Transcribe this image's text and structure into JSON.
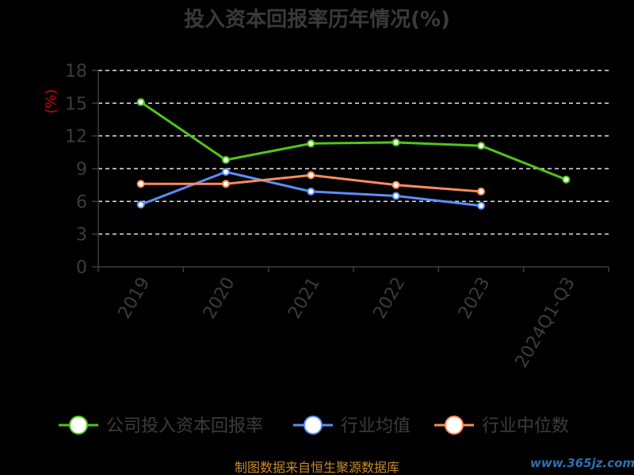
{
  "chart_data": {
    "type": "line",
    "title": "投入资本回报率历年情况(%)",
    "ylabel": "(%)",
    "xlabel": "",
    "categories": [
      "2019",
      "2020",
      "2021",
      "2022",
      "2023",
      "2024Q1-Q3"
    ],
    "ylim": [
      0,
      18
    ],
    "yticks": [
      0,
      3,
      6,
      9,
      12,
      15,
      18
    ],
    "grid": true,
    "legend_position": "bottom",
    "series": [
      {
        "name": "公司投入资本回报率",
        "color": "#52c41a",
        "values": [
          15.1,
          9.8,
          11.3,
          11.4,
          11.1,
          8.0
        ]
      },
      {
        "name": "行业均值",
        "color": "#5b8ff9",
        "values": [
          5.7,
          8.7,
          6.9,
          6.5,
          5.6,
          null
        ]
      },
      {
        "name": "行业中位数",
        "color": "#ff8c5a",
        "values": [
          7.6,
          7.6,
          8.4,
          7.5,
          6.9,
          null
        ]
      }
    ]
  },
  "source": "制图数据来自恒生聚源数据库",
  "watermark": "www.365jz.com"
}
